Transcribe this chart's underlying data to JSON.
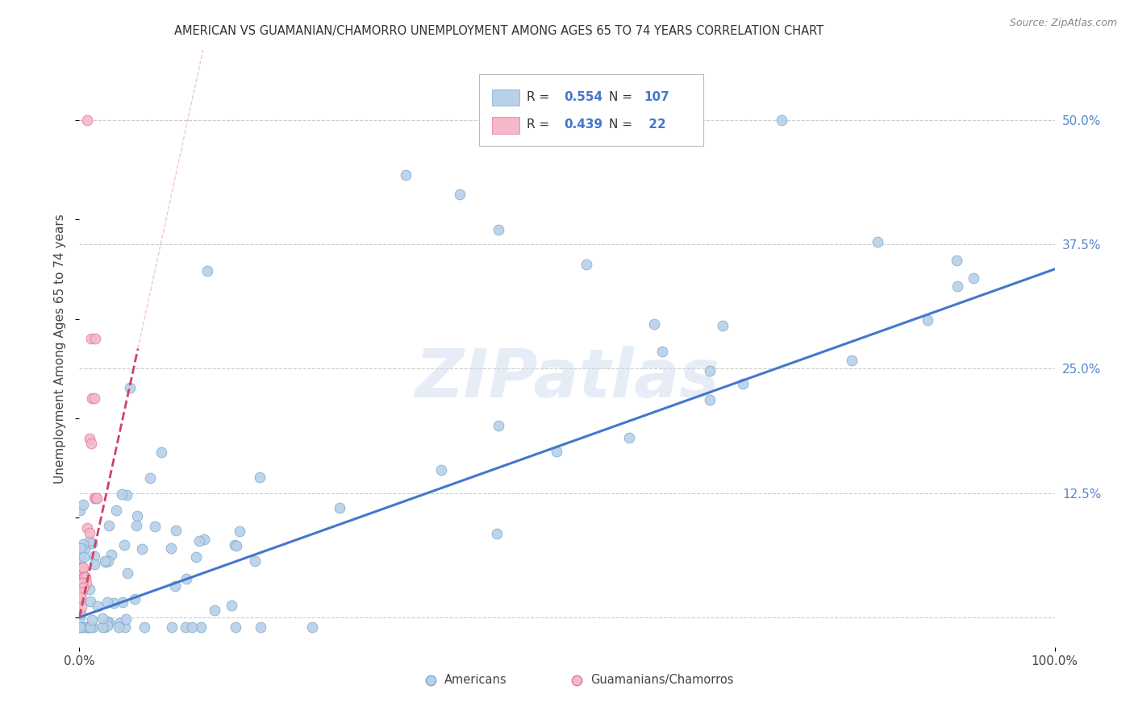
{
  "title": "AMERICAN VS GUAMANIAN/CHAMORRO UNEMPLOYMENT AMONG AGES 65 TO 74 YEARS CORRELATION CHART",
  "source": "Source: ZipAtlas.com",
  "ylabel": "Unemployment Among Ages 65 to 74 years",
  "xlim": [
    0,
    1.0
  ],
  "ylim": [
    -0.03,
    0.57
  ],
  "yticks": [
    0.0,
    0.125,
    0.25,
    0.375,
    0.5
  ],
  "ytick_labels": [
    "",
    "12.5%",
    "25.0%",
    "37.5%",
    "50.0%"
  ],
  "background_color": "#ffffff",
  "grid_color": "#cccccc",
  "watermark": "ZIPatlas",
  "americans_color": "#b8d0e8",
  "americans_edge_color": "#7aabcc",
  "americans_line_color": "#4477cc",
  "americans_line_x0": 0.0,
  "americans_line_y0": 0.0,
  "americans_line_x1": 1.0,
  "americans_line_y1": 0.35,
  "guam_color": "#f5b8c8",
  "guam_edge_color": "#dd7799",
  "guam_line_color": "#cc4466",
  "guam_line_x0": 0.0,
  "guam_line_y0": 0.0,
  "guam_line_x1": 0.06,
  "guam_line_y1": 0.27,
  "legend_color": "#4477cc",
  "americans_R": "0.554",
  "americans_N": "107",
  "guam_R": "0.439",
  "guam_N": "22"
}
